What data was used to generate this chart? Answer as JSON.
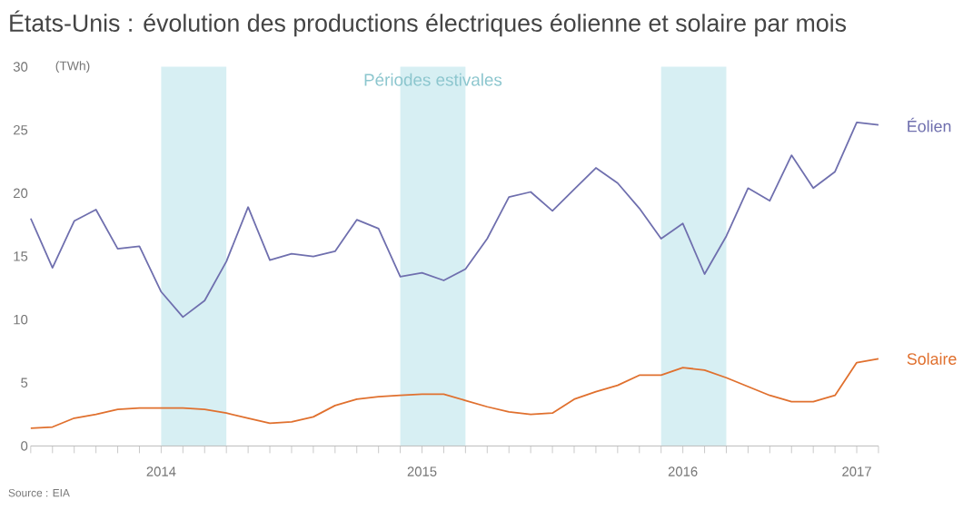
{
  "chart_data": {
    "type": "line",
    "title": "États-Unis : évolution des productions électriques éolienne et solaire par mois",
    "ylabel": "(TWh)",
    "x": [
      "2013-11",
      "2013-12",
      "2014-01",
      "2014-02",
      "2014-03",
      "2014-04",
      "2014-05",
      "2014-06",
      "2014-07",
      "2014-08",
      "2014-09",
      "2014-10",
      "2014-11",
      "2014-12",
      "2015-01",
      "2015-02",
      "2015-03",
      "2015-04",
      "2015-05",
      "2015-06",
      "2015-07",
      "2015-08",
      "2015-09",
      "2015-10",
      "2015-11",
      "2015-12",
      "2016-01",
      "2016-02",
      "2016-03",
      "2016-04",
      "2016-05",
      "2016-06",
      "2016-07",
      "2016-08",
      "2016-09",
      "2016-10",
      "2016-11",
      "2016-12",
      "2017-01",
      "2017-02"
    ],
    "series": [
      {
        "name": "Éolien",
        "color": "#6f6fae",
        "values": [
          18.0,
          14.1,
          17.8,
          18.7,
          15.6,
          15.8,
          12.2,
          10.2,
          11.5,
          14.6,
          18.9,
          14.7,
          15.2,
          15.0,
          15.4,
          17.9,
          17.2,
          13.4,
          13.7,
          13.1,
          14.0,
          16.4,
          19.7,
          20.1,
          18.6,
          20.3,
          22.0,
          20.8,
          18.8,
          16.4,
          17.6,
          13.6,
          16.6,
          20.4,
          19.4,
          23.0,
          20.4,
          21.7,
          25.6,
          25.4
        ]
      },
      {
        "name": "Solaire",
        "color": "#e0702e",
        "values": [
          1.4,
          1.5,
          2.2,
          2.5,
          2.9,
          3.0,
          3.0,
          3.0,
          2.9,
          2.6,
          2.2,
          1.8,
          1.9,
          2.3,
          3.2,
          3.7,
          3.9,
          4.0,
          4.1,
          4.1,
          3.6,
          3.1,
          2.7,
          2.5,
          2.6,
          3.7,
          4.3,
          4.8,
          5.6,
          5.6,
          6.2,
          6.0,
          5.4,
          4.7,
          4.0,
          3.5,
          3.5,
          4.0,
          6.6,
          6.9
        ]
      }
    ],
    "xlim": [
      "2013-11",
      "2017-02"
    ],
    "xticks": [
      {
        "value": "2014-05",
        "label": "2014"
      },
      {
        "value": "2015-05",
        "label": "2015"
      },
      {
        "value": "2016-05",
        "label": "2016"
      },
      {
        "value": "2017-01",
        "label": "2017"
      }
    ],
    "ylim": [
      0,
      30
    ],
    "yticks": [
      0,
      5,
      10,
      15,
      20,
      25,
      30
    ],
    "bands": [
      {
        "axis": "x",
        "from": "2014-05",
        "to": "2014-08",
        "color": "#d7eff3"
      },
      {
        "axis": "x",
        "from": "2015-04",
        "to": "2015-07",
        "label": "Périodes estivales",
        "color": "#d7eff3"
      },
      {
        "axis": "x",
        "from": "2016-04",
        "to": "2016-07",
        "color": "#d7eff3"
      }
    ],
    "annotations": [
      "Source : EIA"
    ]
  }
}
